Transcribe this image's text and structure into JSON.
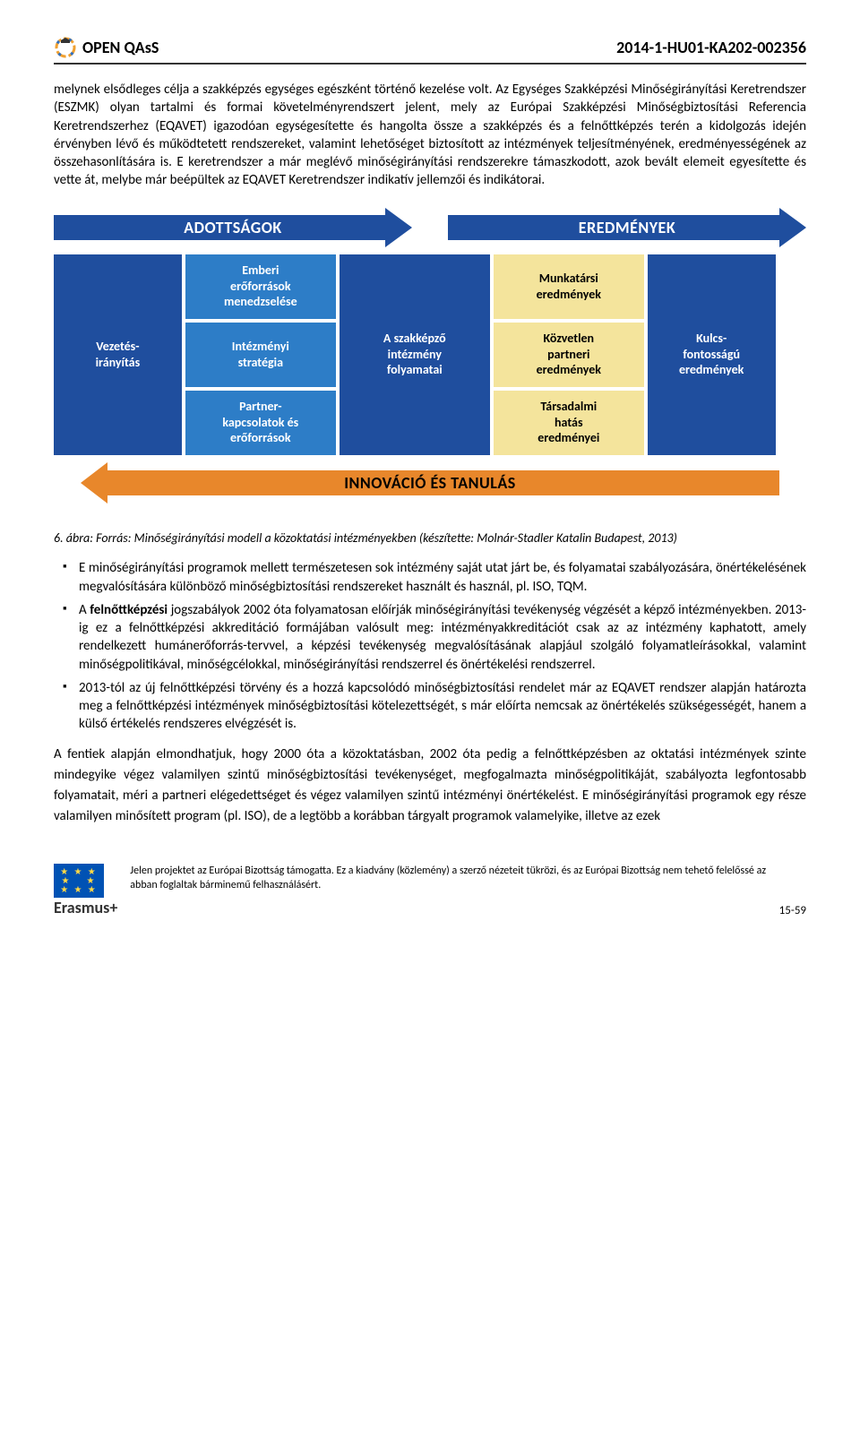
{
  "header": {
    "left_title": "OPEN QAsS",
    "right_title": "2014-1-HU01-KA202-002356"
  },
  "para1": "melynek elsődleges célja a szakképzés egységes egészként történő kezelése volt. Az Egységes Szakképzési Minőségirányítási Keretrendszer (ESZMK) olyan tartalmi és formai követelményrendszert jelent, mely az Európai Szakképzési Minőségbiztosítási Referencia Keretrendszerhez (EQAVET) igazodóan egységesítette és hangolta össze a szakképzés és a felnőttképzés terén a kidolgozás idején érvényben lévő és működtetett rendszereket, valamint lehetőséget biztosított az intézmények teljesítményének, eredményességének az összehasonlítására is. E keretrendszer a már meglévő minőségirányítási rendszerekre támaszkodott, azok bevált elemeit egyesítette és vette át, melybe már beépültek az EQAVET Keretrendszer indikatív jellemzői és indikátorai.",
  "diagram": {
    "top_arrows": {
      "left": "ADOTTSÁGOK",
      "right": "EREDMÉNYEK",
      "color": "#1f4e9e",
      "text_color": "#ffffff"
    },
    "bottom_arrow": {
      "label": "INNOVÁCIÓ ÉS TANULÁS",
      "color": "#e8872b",
      "text_color": "#000000"
    },
    "col1": {
      "bg": "#1f4e9e",
      "r1": "Vezetés-",
      "r2": "irányítás"
    },
    "col2": {
      "bg": "#2d7dc7",
      "c1": {
        "l1": "Emberi",
        "l2": "erőforrások",
        "l3": "menedzselése"
      },
      "c2": {
        "l1": "Intézményi",
        "l2": "stratégia"
      },
      "c3": {
        "l1": "Partner-",
        "l2": "kapcsolatok és",
        "l3": "erőforrások"
      }
    },
    "col3": {
      "bg": "#1f4e9e",
      "l1": "A szakképző",
      "l2": "intézmény",
      "l3": "folyamatai"
    },
    "col4": {
      "bg": "#f4e49c",
      "c1": {
        "l1": "Munkatársi",
        "l2": "eredmények"
      },
      "c2": {
        "l1": "Közvetlen",
        "l2": "partneri",
        "l3": "eredmények"
      },
      "c3": {
        "l1": "Társadalmi",
        "l2": "hatás",
        "l3": "eredményei"
      }
    },
    "col5": {
      "bg": "#1f4e9e",
      "l1": "Kulcs-",
      "l2": "fontosságú",
      "l3": "eredmények"
    }
  },
  "caption": "6. ábra: Forrás: Minőségirányítási modell a közoktatási intézményekben  (készítette: Molnár-Stadler Katalin Budapest, 2013)",
  "bullets": [
    "E minőségirányítási programok mellett természetesen sok intézmény saját utat járt be, és folyamatai szabályozására, önértékelésének megvalósítására különböző minőségbiztosítási rendszereket használt és használ, pl. ISO, TQM.",
    "A <b>felnőttképzési</b> jogszabályok 2002 óta folyamatosan előírják minőségirányítási tevékenység végzését a képző intézményekben. 2013-ig ez a felnőttképzési akkreditáció formájában valósult meg: intézményakkreditációt csak az az intézmény kaphatott, amely rendelkezett humánerőforrás-tervvel, a képzési tevékenység megvalósításának alapjául szolgáló folyamatleírásokkal, valamint minőségpolitikával, minőségcélokkal, minőségirányítási rendszerrel és önértékelési rendszerrel.",
    "2013-tól az új felnőttképzési törvény és a hozzá kapcsolódó minőségbiztosítási rendelet már az EQAVET rendszer alapján határozta meg a felnőttképzési intézmények minőségbiztosítási kötelezettségét, s már előírta nemcsak az önértékelés szükségességét, hanem a külső értékelés rendszeres elvégzését is."
  ],
  "para2": "A fentiek alapján elmondhatjuk, hogy 2000 óta a közoktatásban, 2002 óta pedig a felnőttképzésben az oktatási intézmények szinte mindegyike végez valamilyen szintű minőségbiztosítási tevékenységet, megfogalmazta minőségpolitikáját, szabályozta legfontosabb folyamatait, méri a partneri elégedettséget és végez valamilyen szintű intézményi önértékelést. E minőségirányítási programok egy része valamilyen minősített program (pl. ISO), de a legtöbb a korábban tárgyalt programok valamelyike, illetve az ezek",
  "footer": {
    "erasmus": "Erasmus+",
    "disclaimer": "Jelen projektet az Európai Bizottság támogatta. Ez a kiadvány (közlemény) a szerző nézeteit tükrözi, és az Európai Bizottság nem tehető felelőssé az abban foglaltak bárminemű felhasználásért.",
    "page": "15-59"
  }
}
